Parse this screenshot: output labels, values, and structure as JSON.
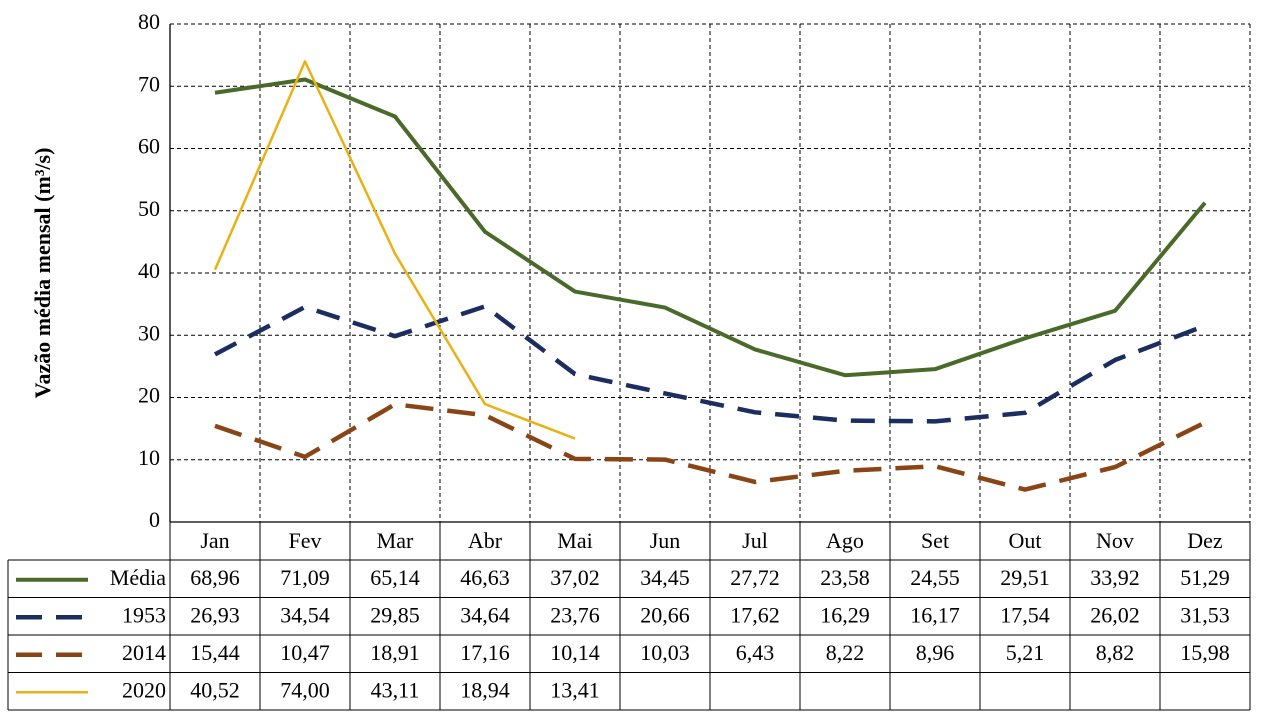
{
  "chart_data": {
    "type": "line",
    "y_label": "Vazão média mensal (m³/s)",
    "categories": [
      "Jan",
      "Fev",
      "Mar",
      "Abr",
      "Mai",
      "Jun",
      "Jul",
      "Ago",
      "Set",
      "Out",
      "Nov",
      "Dez"
    ],
    "ylim": [
      0,
      80
    ],
    "yticks": [
      0,
      10,
      20,
      30,
      40,
      50,
      60,
      70,
      80
    ],
    "grid": true,
    "series": [
      {
        "name": "Média",
        "color": "#4a6a2a",
        "style": "solid",
        "values": [
          68.96,
          71.09,
          65.14,
          46.63,
          37.02,
          34.45,
          27.72,
          23.58,
          24.55,
          29.51,
          33.92,
          51.29
        ],
        "value_labels": [
          "68,96",
          "71,09",
          "65,14",
          "46,63",
          "37,02",
          "34,45",
          "27,72",
          "23,58",
          "24,55",
          "29,51",
          "33,92",
          "51,29"
        ]
      },
      {
        "name": "1953",
        "color": "#1c2e60",
        "style": "dashed",
        "values": [
          26.93,
          34.54,
          29.85,
          34.64,
          23.76,
          20.66,
          17.62,
          16.29,
          16.17,
          17.54,
          26.02,
          31.53
        ],
        "value_labels": [
          "26,93",
          "34,54",
          "29,85",
          "34,64",
          "23,76",
          "20,66",
          "17,62",
          "16,29",
          "16,17",
          "17,54",
          "26,02",
          "31,53"
        ]
      },
      {
        "name": "2014",
        "color": "#8a4516",
        "style": "dashed",
        "values": [
          15.44,
          10.47,
          18.91,
          17.16,
          10.14,
          10.03,
          6.43,
          8.22,
          8.96,
          5.21,
          8.82,
          15.98
        ],
        "value_labels": [
          "15,44",
          "10,47",
          "18,91",
          "17,16",
          "10,14",
          "10,03",
          "6,43",
          "8,22",
          "8,96",
          "5,21",
          "8,82",
          "15,98"
        ]
      },
      {
        "name": "2020",
        "color": "#e8b215",
        "style": "solid",
        "values": [
          40.52,
          74.0,
          43.11,
          18.94,
          13.41,
          null,
          null,
          null,
          null,
          null,
          null,
          null
        ],
        "value_labels": [
          "40,52",
          "74,00",
          "43,11",
          "18,94",
          "13,41",
          null,
          null,
          null,
          null,
          null,
          null,
          null
        ]
      }
    ]
  }
}
